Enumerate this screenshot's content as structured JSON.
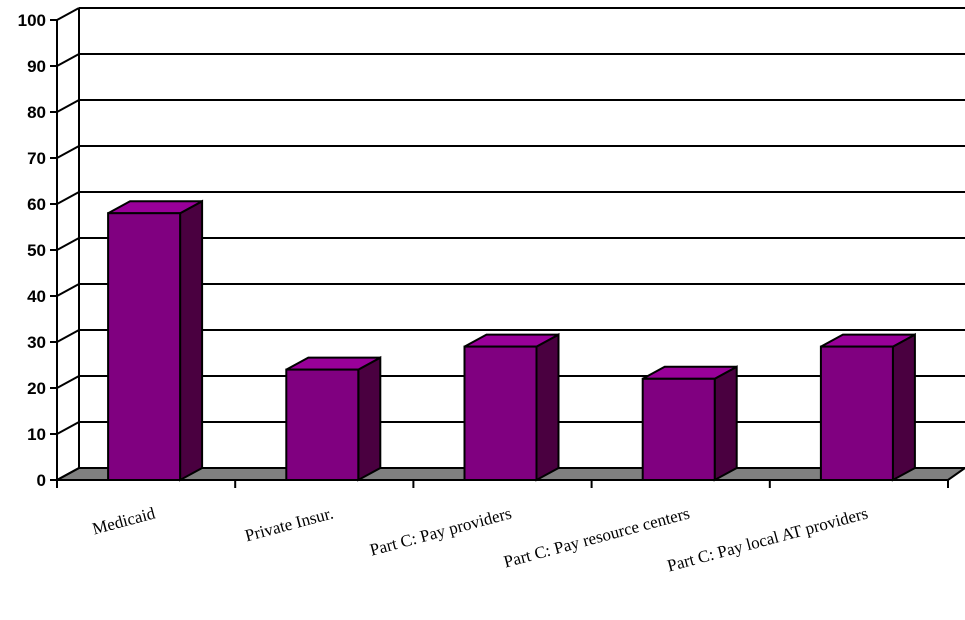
{
  "chart_data": {
    "type": "bar",
    "style": "3d-column",
    "title": "",
    "xlabel": "",
    "ylabel": "",
    "ylim": [
      0,
      100
    ],
    "yticks": [
      0,
      10,
      20,
      30,
      40,
      50,
      60,
      70,
      80,
      90,
      100
    ],
    "grid": true,
    "legend": "none",
    "categories": [
      "Medicaid",
      "Private Insur.",
      "Part C: Pay providers",
      "Part C: Pay resource centers",
      "Part C: Pay local AT providers"
    ],
    "values": [
      58,
      24,
      29,
      22,
      29
    ],
    "colors": {
      "bar_front": "#800080",
      "bar_top": "#990099",
      "bar_side": "#4a0040",
      "floor": "#808080",
      "background": "#ffffff"
    }
  }
}
